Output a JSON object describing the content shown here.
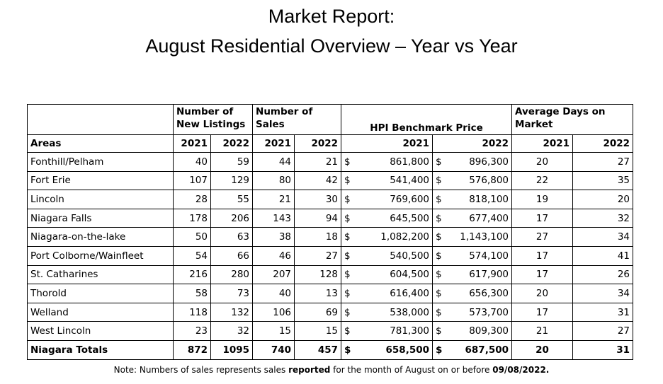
{
  "title_line1": "Market Report:",
  "title_line2": "August Residential Overview – Year vs Year",
  "headers": {
    "listings": "Number of New Listings",
    "sales": "Number of Sales",
    "hpi": "HPI Benchmark Price",
    "days": "Average Days on Market",
    "areas": "Areas",
    "y2021": "2021",
    "y2022": "2022"
  },
  "rows": [
    {
      "area": "Fonthill/Pelham",
      "nl21": "40",
      "nl22": "59",
      "s21": "44",
      "s22": "21",
      "p21": "861,800",
      "p22": "896,300",
      "d21": "20",
      "d22": "27"
    },
    {
      "area": "Fort Erie",
      "nl21": "107",
      "nl22": "129",
      "s21": "80",
      "s22": "42",
      "p21": "541,400",
      "p22": "576,800",
      "d21": "22",
      "d22": "35"
    },
    {
      "area": "Lincoln",
      "nl21": "28",
      "nl22": "55",
      "s21": "21",
      "s22": "30",
      "p21": "769,600",
      "p22": "818,100",
      "d21": "19",
      "d22": "20"
    },
    {
      "area": "Niagara Falls",
      "nl21": "178",
      "nl22": "206",
      "s21": "143",
      "s22": "94",
      "p21": "645,500",
      "p22": "677,400",
      "d21": "17",
      "d22": "32"
    },
    {
      "area": "Niagara-on-the-lake",
      "nl21": "50",
      "nl22": "63",
      "s21": "38",
      "s22": "18",
      "p21": "1,082,200",
      "p22": "1,143,100",
      "d21": "27",
      "d22": "34"
    },
    {
      "area": "Port Colborne/Wainfleet",
      "nl21": "54",
      "nl22": "66",
      "s21": "46",
      "s22": "27",
      "p21": "540,500",
      "p22": "574,100",
      "d21": "17",
      "d22": "41"
    },
    {
      "area": "St. Catharines",
      "nl21": "216",
      "nl22": "280",
      "s21": "207",
      "s22": "128",
      "p21": "604,500",
      "p22": "617,900",
      "d21": "17",
      "d22": "26"
    },
    {
      "area": "Thorold",
      "nl21": "58",
      "nl22": "73",
      "s21": "40",
      "s22": "13",
      "p21": "616,400",
      "p22": "656,300",
      "d21": "20",
      "d22": "34"
    },
    {
      "area": "Welland",
      "nl21": "118",
      "nl22": "132",
      "s21": "106",
      "s22": "69",
      "p21": "538,000",
      "p22": "573,700",
      "d21": "17",
      "d22": "31"
    },
    {
      "area": "West Lincoln",
      "nl21": "23",
      "nl22": "32",
      "s21": "15",
      "s22": "15",
      "p21": "781,300",
      "p22": "809,300",
      "d21": "21",
      "d22": "27"
    }
  ],
  "totals": {
    "area": "Niagara Totals",
    "nl21": "872",
    "nl22": "1095",
    "s21": "740",
    "s22": "457",
    "p21": "658,500",
    "p22": "687,500",
    "d21": "20",
    "d22": "31"
  },
  "currency": "$",
  "note": {
    "pre": "Note: Numbers of sales represents sales ",
    "bold1": "reported",
    "mid": " for the month of August on or before ",
    "bold2": "09/08/2022."
  }
}
